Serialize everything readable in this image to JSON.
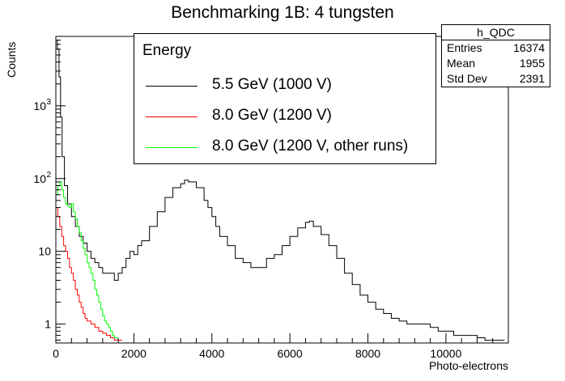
{
  "chart_data": {
    "type": "histogram",
    "title": "Benchmarking 1B: 4 tungsten",
    "xlabel": "Photo-electrons",
    "ylabel": "Counts",
    "xlim": [
      0,
      11600
    ],
    "ylim": [
      0.55,
      9000
    ],
    "yscale": "log",
    "x_ticks": [
      "0",
      "2000",
      "4000",
      "6000",
      "8000",
      "10000"
    ],
    "y_ticks": [
      {
        "value": 1,
        "base": "1",
        "exp": ""
      },
      {
        "value": 10,
        "base": "10",
        "exp": ""
      },
      {
        "value": 100,
        "base": "10",
        "exp": "2"
      },
      {
        "value": 1000,
        "base": "10",
        "exp": "3"
      }
    ],
    "legend": {
      "header": "Energy",
      "placement": "top-center",
      "entries": [
        {
          "label": "5.5 GeV (1000 V)",
          "color": "#000000"
        },
        {
          "label": "8.0 GeV (1200 V)",
          "color": "#ff0000"
        },
        {
          "label": "8.0 GeV (1200 V, other runs)",
          "color": "#00ff00"
        }
      ]
    },
    "stats": {
      "name": "h_QDC",
      "rows": [
        {
          "label": "Entries",
          "value": "16374"
        },
        {
          "label": "Mean",
          "value": "1955"
        },
        {
          "label": "Std Dev",
          "value": "2391"
        }
      ]
    },
    "series": [
      {
        "name": "5.5 GeV (1000 V)",
        "color": "#000000",
        "points": [
          [
            0,
            8000
          ],
          [
            40,
            6000
          ],
          [
            80,
            2500
          ],
          [
            120,
            700
          ],
          [
            160,
            200
          ],
          [
            220,
            80
          ],
          [
            300,
            45
          ],
          [
            400,
            30
          ],
          [
            500,
            22
          ],
          [
            600,
            16
          ],
          [
            700,
            13
          ],
          [
            800,
            10
          ],
          [
            900,
            8
          ],
          [
            1000,
            7
          ],
          [
            1100,
            6
          ],
          [
            1200,
            5
          ],
          [
            1300,
            5
          ],
          [
            1400,
            5
          ],
          [
            1500,
            4
          ],
          [
            1600,
            5
          ],
          [
            1700,
            6
          ],
          [
            1800,
            8
          ],
          [
            1900,
            10
          ],
          [
            2000,
            9
          ],
          [
            2100,
            12
          ],
          [
            2200,
            14
          ],
          [
            2400,
            22
          ],
          [
            2600,
            35
          ],
          [
            2800,
            55
          ],
          [
            3000,
            75
          ],
          [
            3200,
            85
          ],
          [
            3300,
            95
          ],
          [
            3400,
            90
          ],
          [
            3600,
            75
          ],
          [
            3800,
            50
          ],
          [
            3900,
            40
          ],
          [
            4000,
            30
          ],
          [
            4100,
            22
          ],
          [
            4200,
            16
          ],
          [
            4400,
            12
          ],
          [
            4600,
            8
          ],
          [
            4800,
            7
          ],
          [
            5000,
            6
          ],
          [
            5200,
            6
          ],
          [
            5400,
            8
          ],
          [
            5600,
            9
          ],
          [
            5800,
            12
          ],
          [
            6000,
            16
          ],
          [
            6200,
            21
          ],
          [
            6400,
            25
          ],
          [
            6500,
            26
          ],
          [
            6600,
            22
          ],
          [
            6800,
            17
          ],
          [
            7000,
            12
          ],
          [
            7200,
            8
          ],
          [
            7400,
            5
          ],
          [
            7600,
            3.5
          ],
          [
            7800,
            2.5
          ],
          [
            8000,
            2
          ],
          [
            8200,
            1.6
          ],
          [
            8400,
            1.4
          ],
          [
            8600,
            1.2
          ],
          [
            8800,
            1.1
          ],
          [
            9000,
            1
          ],
          [
            9200,
            1
          ],
          [
            9400,
            1
          ],
          [
            9600,
            0.9
          ],
          [
            9800,
            0.8
          ],
          [
            10000,
            0.8
          ],
          [
            10200,
            0.7
          ],
          [
            10400,
            0.7
          ],
          [
            10600,
            0.7
          ],
          [
            10800,
            0.65
          ],
          [
            11000,
            0.6
          ],
          [
            11200,
            0.6
          ],
          [
            11400,
            0.6
          ]
        ]
      },
      {
        "name": "8.0 GeV (1200 V)",
        "color": "#ff0000",
        "points": [
          [
            0,
            40
          ],
          [
            50,
            30
          ],
          [
            100,
            22
          ],
          [
            150,
            16
          ],
          [
            200,
            12
          ],
          [
            250,
            10
          ],
          [
            300,
            8
          ],
          [
            350,
            6
          ],
          [
            400,
            5
          ],
          [
            450,
            4
          ],
          [
            500,
            3
          ],
          [
            550,
            2.5
          ],
          [
            600,
            2
          ],
          [
            650,
            1.7
          ],
          [
            700,
            1.4
          ],
          [
            750,
            1.2
          ],
          [
            800,
            1.1
          ],
          [
            900,
            1
          ],
          [
            1000,
            0.9
          ],
          [
            1100,
            0.8
          ],
          [
            1200,
            0.75
          ],
          [
            1300,
            0.7
          ],
          [
            1400,
            0.65
          ],
          [
            1500,
            0.6
          ],
          [
            1600,
            0.6
          ]
        ]
      },
      {
        "name": "8.0 GeV (1200 V, other runs)",
        "color": "#00ff00",
        "points": [
          [
            0,
            60
          ],
          [
            50,
            80
          ],
          [
            100,
            90
          ],
          [
            150,
            70
          ],
          [
            200,
            55
          ],
          [
            250,
            45
          ],
          [
            300,
            42
          ],
          [
            350,
            40
          ],
          [
            400,
            45
          ],
          [
            450,
            35
          ],
          [
            500,
            28
          ],
          [
            550,
            22
          ],
          [
            600,
            18
          ],
          [
            650,
            14
          ],
          [
            700,
            11
          ],
          [
            750,
            9
          ],
          [
            800,
            7
          ],
          [
            850,
            6
          ],
          [
            900,
            5
          ],
          [
            950,
            4
          ],
          [
            1000,
            3
          ],
          [
            1050,
            2.5
          ],
          [
            1100,
            2
          ],
          [
            1150,
            1.6
          ],
          [
            1200,
            1.3
          ],
          [
            1250,
            1.1
          ],
          [
            1300,
            1
          ],
          [
            1350,
            0.9
          ],
          [
            1400,
            0.8
          ],
          [
            1450,
            0.7
          ],
          [
            1500,
            0.65
          ]
        ]
      }
    ]
  }
}
